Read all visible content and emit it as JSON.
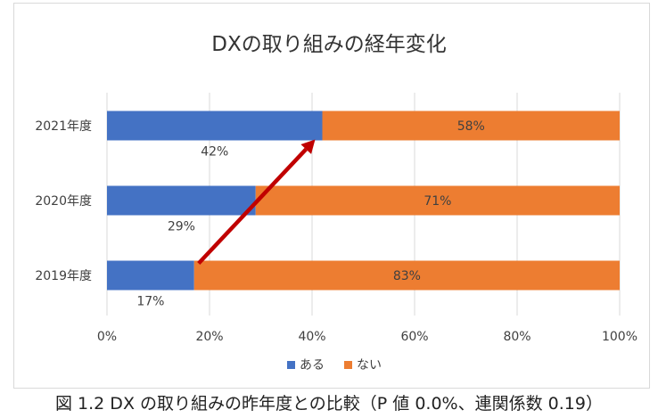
{
  "chart_data": {
    "type": "bar",
    "orientation": "horizontal",
    "stacked": true,
    "percent_stacked": true,
    "title": "DXの取り組みの経年変化",
    "categories": [
      "2021年度",
      "2020年度",
      "2019年度"
    ],
    "series": [
      {
        "name": "ある",
        "values": [
          42,
          29,
          17
        ],
        "labels": [
          "42%",
          "29%",
          "17%"
        ],
        "color": "#4472c4"
      },
      {
        "name": "ない",
        "values": [
          58,
          71,
          83
        ],
        "labels": [
          "58%",
          "71%",
          "83%"
        ],
        "color": "#ed7d31"
      }
    ],
    "xlim": [
      0,
      100
    ],
    "x_ticks": [
      "0%",
      "20%",
      "40%",
      "60%",
      "80%",
      "100%"
    ],
    "grid": "vertical",
    "legend": "bottom",
    "annotation": {
      "type": "arrow",
      "from_category": "2019年度",
      "to_category": "2021年度",
      "color": "#c00000"
    }
  },
  "caption": "図 1.2 DX の取り組みの昨年度との比較（P 値 0.0%、連関係数 0.19）"
}
